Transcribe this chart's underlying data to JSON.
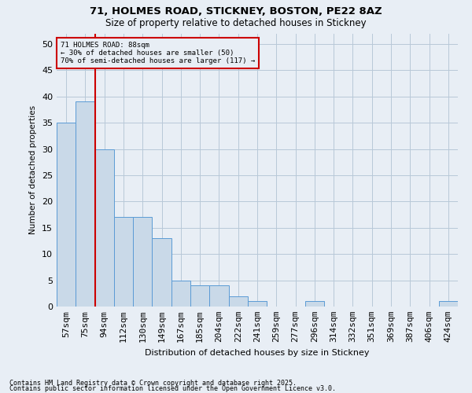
{
  "title1": "71, HOLMES ROAD, STICKNEY, BOSTON, PE22 8AZ",
  "title2": "Size of property relative to detached houses in Stickney",
  "xlabel": "Distribution of detached houses by size in Stickney",
  "ylabel": "Number of detached properties",
  "categories": [
    "57sqm",
    "75sqm",
    "94sqm",
    "112sqm",
    "130sqm",
    "149sqm",
    "167sqm",
    "185sqm",
    "204sqm",
    "222sqm",
    "241sqm",
    "259sqm",
    "277sqm",
    "296sqm",
    "314sqm",
    "332sqm",
    "351sqm",
    "369sqm",
    "387sqm",
    "406sqm",
    "424sqm"
  ],
  "values": [
    35,
    39,
    30,
    17,
    17,
    13,
    5,
    4,
    4,
    2,
    1,
    0,
    0,
    1,
    0,
    0,
    0,
    0,
    0,
    0,
    1
  ],
  "bar_color": "#c9d9e8",
  "bar_edge_color": "#5b9bd5",
  "grid_color": "#b8c8d8",
  "vline_x": 2.0,
  "vline_color": "#cc0000",
  "annotation_box_text": "71 HOLMES ROAD: 88sqm\n← 30% of detached houses are smaller (50)\n70% of semi-detached houses are larger (117) →",
  "annotation_box_color": "#cc0000",
  "ylim": [
    0,
    52
  ],
  "yticks": [
    0,
    5,
    10,
    15,
    20,
    25,
    30,
    35,
    40,
    45,
    50
  ],
  "footer1": "Contains HM Land Registry data © Crown copyright and database right 2025.",
  "footer2": "Contains public sector information licensed under the Open Government Licence v3.0.",
  "bg_color": "#e8eef5"
}
